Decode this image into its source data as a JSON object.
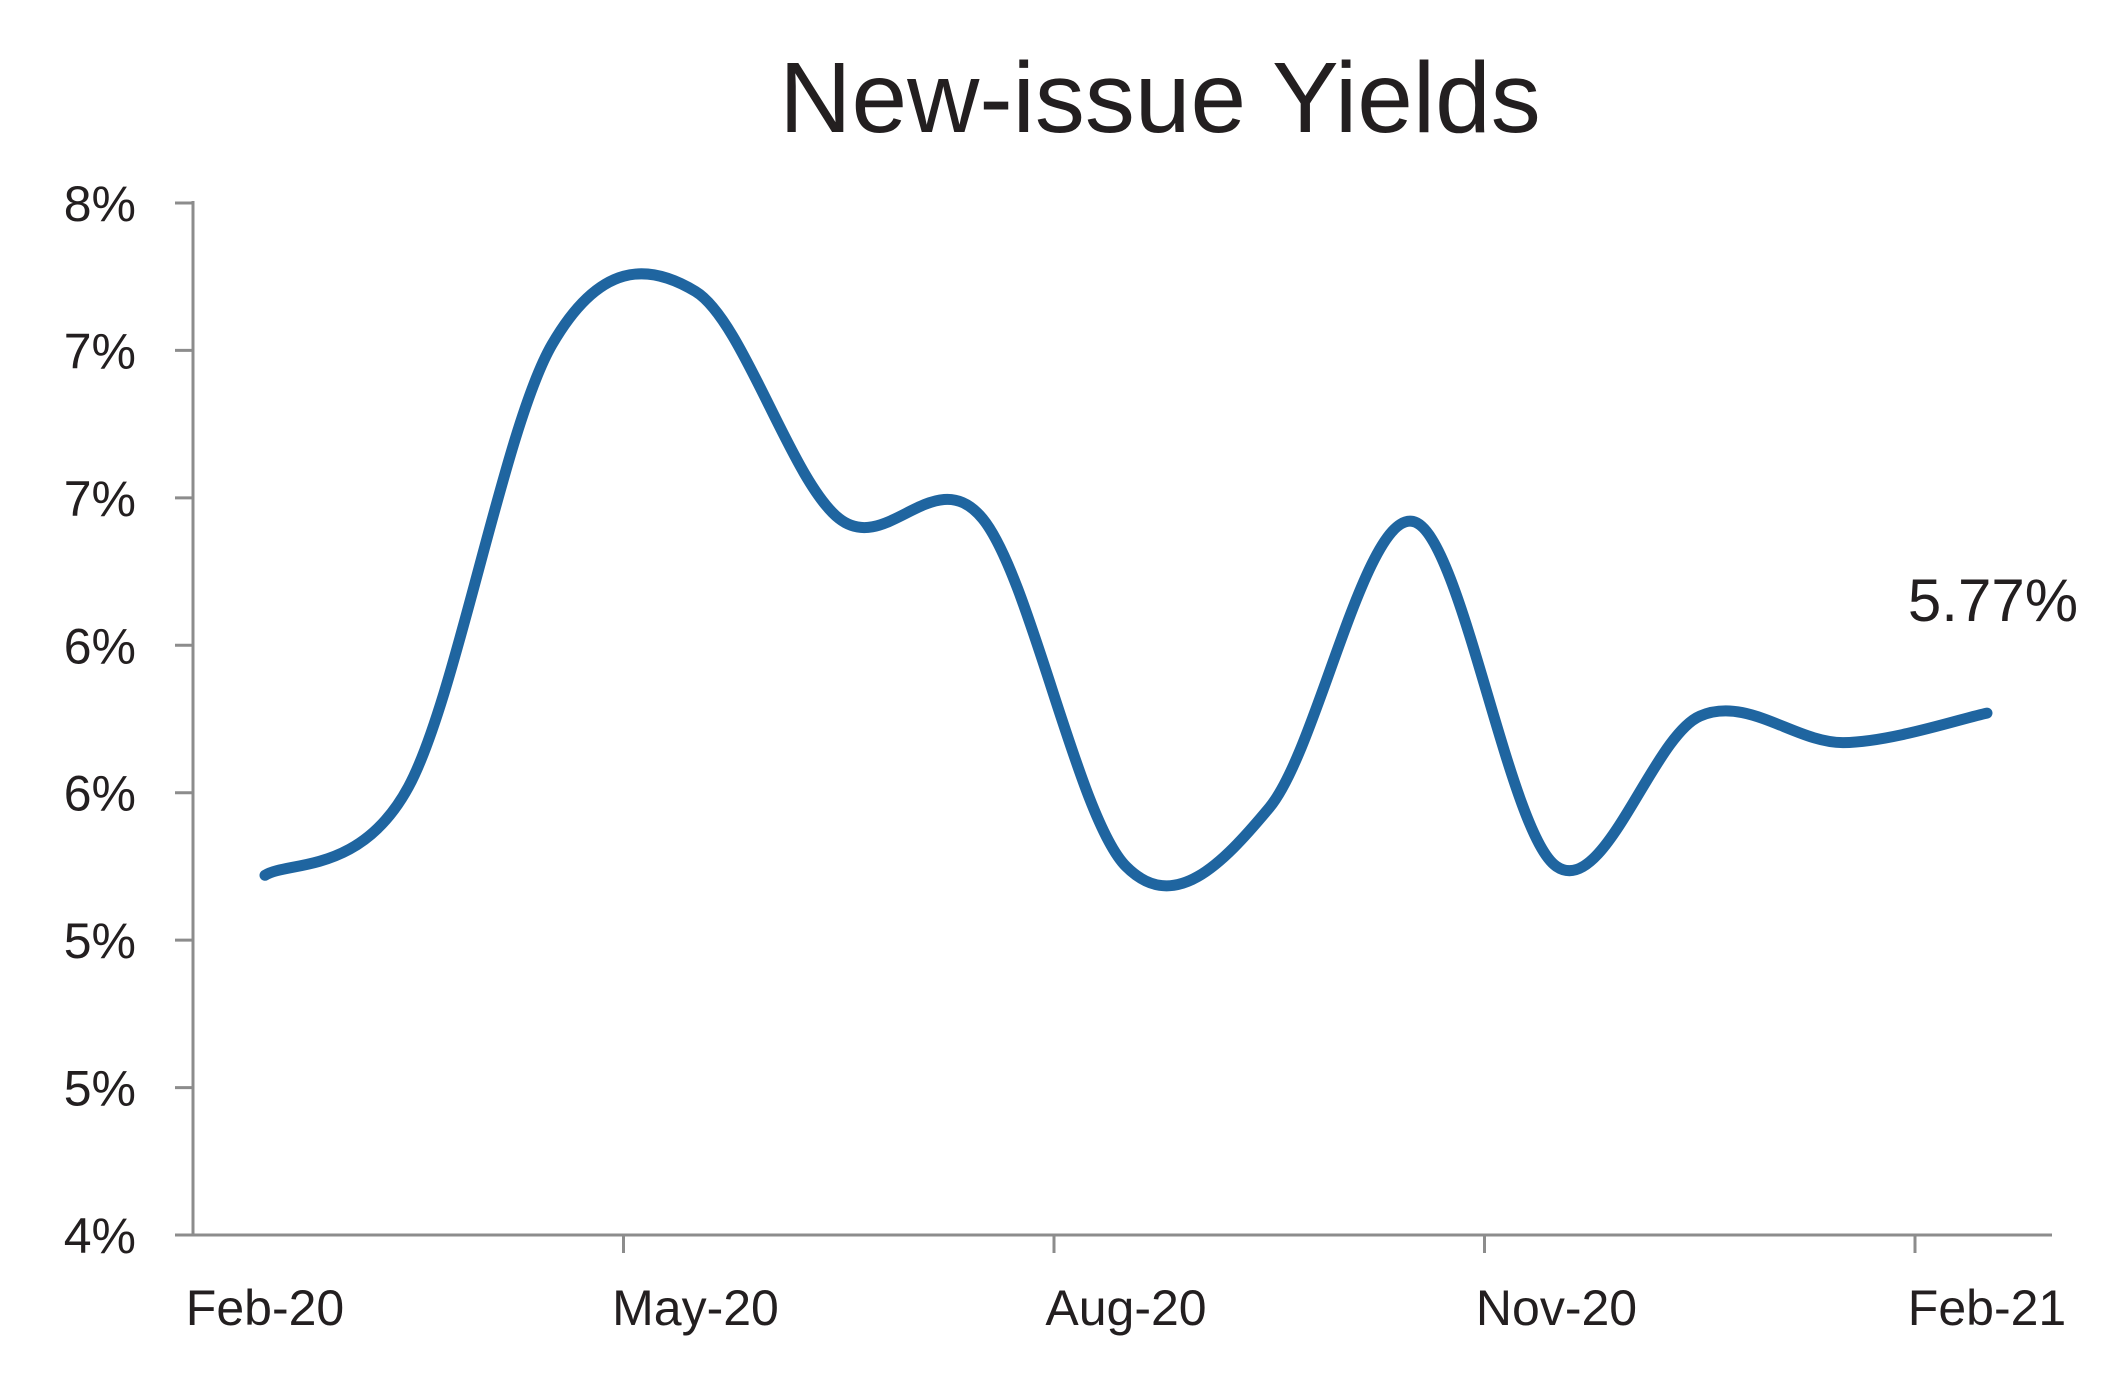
{
  "chart_data": {
    "type": "line",
    "title": "New-issue Yields",
    "xlabel": "",
    "ylabel": "",
    "x_tick_labels": [
      "Feb-20",
      "May-20",
      "Aug-20",
      "Nov-20",
      "Feb-21"
    ],
    "y_tick_labels": [
      "4%",
      "5%",
      "5%",
      "6%",
      "6%",
      "7%",
      "7%",
      "8%"
    ],
    "ylim": [
      4.0,
      7.5
    ],
    "y_tick_values": [
      4.0,
      4.5,
      5.0,
      5.5,
      6.0,
      6.5,
      7.0,
      7.5
    ],
    "grid": false,
    "legend": "none",
    "series_color": "#1f65a0",
    "series": [
      {
        "x": [
          "Feb-20",
          "Mar-20",
          "Apr-20",
          "May-20",
          "Jun-20",
          "Jul-20",
          "Aug-20",
          "Sep-20",
          "Oct-20",
          "Nov-20",
          "Dec-20",
          "Jan-21",
          "Feb-21"
        ],
        "values": [
          5.22,
          5.52,
          7.02,
          7.2,
          6.43,
          6.43,
          5.25,
          5.45,
          6.42,
          5.25,
          5.76,
          5.67,
          5.77
        ]
      }
    ],
    "annotations": [
      {
        "text": "5.77%",
        "x": "Feb-21",
        "y": 5.77
      }
    ]
  }
}
